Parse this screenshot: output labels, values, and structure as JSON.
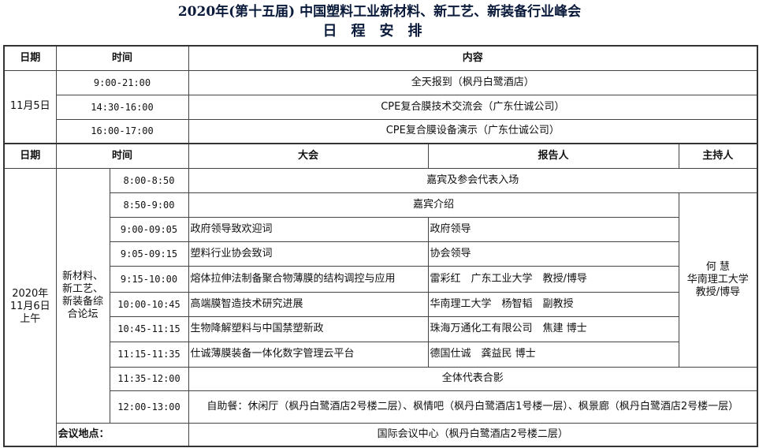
{
  "title": "2020年(第十五届) 中国塑料工业新材料、新工艺、新装备行业峰会",
  "subtitle": "日程安排",
  "section1": {
    "headers": {
      "date": "日期",
      "time": "时间",
      "content": "内容"
    },
    "date": "11月5日",
    "rows": [
      {
        "time": "9:00-21:00",
        "content": "全天报到（枫丹白鹭酒店）"
      },
      {
        "time": "14:30-16:00",
        "content": "CPE复合膜技术交流会（广东仕诚公司）"
      },
      {
        "time": "16:00-17:00",
        "content": "CPE复合膜设备演示（广东仕诚公司）"
      }
    ]
  },
  "section2": {
    "headers": {
      "date": "日期",
      "time": "时间",
      "session": "大会",
      "speaker": "报告人",
      "host": "主持人"
    },
    "date": "2020年11月6日上午",
    "forum": "新材料、新工艺、新装备综合论坛",
    "host": {
      "name": "何 慧",
      "org": "华南理工大学",
      "title": "教授/博导"
    },
    "rows": [
      {
        "time": "8:00-8:50",
        "content": "嘉宾及参会代表入场"
      },
      {
        "time": "8:50-9:00",
        "content": "嘉宾介绍"
      },
      {
        "time": "9:00-09:05",
        "session": "政府领导致欢迎词",
        "speaker": "政府领导"
      },
      {
        "time": "9:05-09:15",
        "session": "塑料行业协会致词",
        "speaker": "协会领导"
      },
      {
        "time": "9:15-10:00",
        "session": "熔体拉伸法制备聚合物薄膜的结构调控与应用",
        "speaker": "雷彩红　广东工业大学　教授/博导"
      },
      {
        "time": "10:00-10:45",
        "session": "高端膜智造技术研究进展",
        "speaker": "华南理工大学　杨智韬　副教授"
      },
      {
        "time": "10:45-11:15",
        "session": "生物降解塑料与中国禁塑新政",
        "speaker": "珠海万通化工有限公司　焦建 博士"
      },
      {
        "time": "11:15-11:35",
        "session": "仕诚薄膜装备一体化数字管理云平台",
        "speaker": "德国仕诚　龚益民 博士"
      },
      {
        "time": "11:35-12:00",
        "content": "全体代表合影"
      },
      {
        "time": "12:00-13:00",
        "content": "自助餐：休闲厅（枫丹白鹭酒店2号楼二层）、枫情吧（枫丹白鹭酒店1号楼一层）、枫景廊（枫丹白鹭酒店2号楼一层）"
      }
    ],
    "venue": {
      "label": "会议地点：",
      "value": "国际会议中心（枫丹白鹭酒店2号楼二层）"
    }
  }
}
